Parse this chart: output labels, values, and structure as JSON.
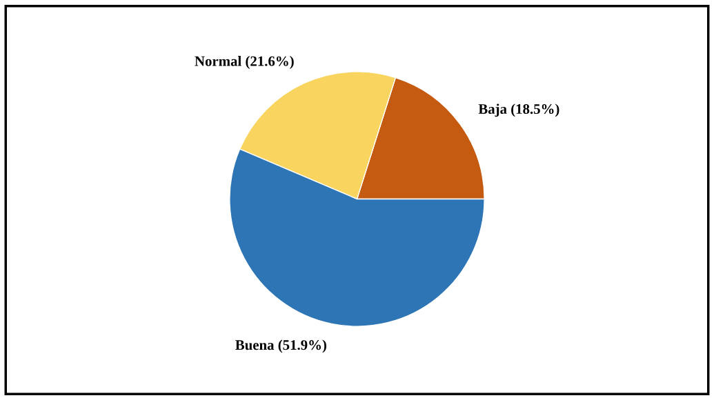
{
  "chart_data": {
    "type": "pie",
    "categories": [
      "Baja (18.5%)",
      "Normal (21.6%)",
      "Buena (51.9%)"
    ],
    "values": [
      18.5,
      21.6,
      51.9
    ],
    "colors": [
      "#c55a11",
      "#f9d45f",
      "#2e75b6"
    ],
    "legend": false
  }
}
